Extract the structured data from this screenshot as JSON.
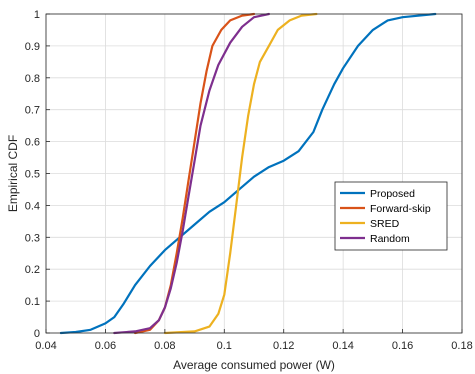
{
  "chart_data": {
    "type": "line",
    "title": "",
    "xlabel": "Average consumed power (W)",
    "ylabel": "Empirical CDF",
    "xlim": [
      0.04,
      0.18
    ],
    "ylim": [
      0,
      1
    ],
    "x_ticks": [
      0.04,
      0.06,
      0.08,
      0.1,
      0.12,
      0.14,
      0.16,
      0.18
    ],
    "x_tick_labels": [
      "0.04",
      "0.06",
      "0.08",
      "0.1",
      "0.12",
      "0.14",
      "0.16",
      "0.18"
    ],
    "y_ticks": [
      0,
      0.1,
      0.2,
      0.3,
      0.4,
      0.5,
      0.6,
      0.7,
      0.8,
      0.9,
      1
    ],
    "y_tick_labels": [
      "0",
      "0.1",
      "0.2",
      "0.3",
      "0.4",
      "0.5",
      "0.6",
      "0.7",
      "0.8",
      "0.9",
      "1"
    ],
    "grid": true,
    "legend_position": "center-right",
    "series": [
      {
        "name": "Proposed",
        "color": "#0072BD",
        "points": [
          [
            0.045,
            0
          ],
          [
            0.05,
            0.003
          ],
          [
            0.055,
            0.01
          ],
          [
            0.06,
            0.03
          ],
          [
            0.063,
            0.05
          ],
          [
            0.066,
            0.09
          ],
          [
            0.07,
            0.15
          ],
          [
            0.075,
            0.21
          ],
          [
            0.08,
            0.26
          ],
          [
            0.085,
            0.3
          ],
          [
            0.09,
            0.34
          ],
          [
            0.095,
            0.38
          ],
          [
            0.1,
            0.41
          ],
          [
            0.105,
            0.45
          ],
          [
            0.11,
            0.49
          ],
          [
            0.115,
            0.52
          ],
          [
            0.12,
            0.54
          ],
          [
            0.125,
            0.57
          ],
          [
            0.13,
            0.63
          ],
          [
            0.133,
            0.7
          ],
          [
            0.137,
            0.78
          ],
          [
            0.14,
            0.83
          ],
          [
            0.145,
            0.9
          ],
          [
            0.15,
            0.95
          ],
          [
            0.155,
            0.98
          ],
          [
            0.16,
            0.99
          ],
          [
            0.171,
            1
          ]
        ]
      },
      {
        "name": "Forward-skip",
        "color": "#D95319",
        "points": [
          [
            0.07,
            0
          ],
          [
            0.075,
            0.01
          ],
          [
            0.078,
            0.04
          ],
          [
            0.08,
            0.08
          ],
          [
            0.082,
            0.15
          ],
          [
            0.084,
            0.25
          ],
          [
            0.086,
            0.36
          ],
          [
            0.088,
            0.48
          ],
          [
            0.09,
            0.6
          ],
          [
            0.092,
            0.72
          ],
          [
            0.094,
            0.82
          ],
          [
            0.096,
            0.9
          ],
          [
            0.099,
            0.95
          ],
          [
            0.102,
            0.98
          ],
          [
            0.106,
            0.995
          ],
          [
            0.11,
            1
          ]
        ]
      },
      {
        "name": "SRED",
        "color": "#EDB120",
        "points": [
          [
            0.08,
            0
          ],
          [
            0.09,
            0.005
          ],
          [
            0.095,
            0.02
          ],
          [
            0.098,
            0.06
          ],
          [
            0.1,
            0.12
          ],
          [
            0.102,
            0.25
          ],
          [
            0.104,
            0.4
          ],
          [
            0.106,
            0.55
          ],
          [
            0.108,
            0.68
          ],
          [
            0.11,
            0.78
          ],
          [
            0.112,
            0.85
          ],
          [
            0.115,
            0.9
          ],
          [
            0.118,
            0.95
          ],
          [
            0.122,
            0.98
          ],
          [
            0.126,
            0.995
          ],
          [
            0.131,
            1
          ]
        ]
      },
      {
        "name": "Random",
        "color": "#7E2F8E",
        "points": [
          [
            0.063,
            0
          ],
          [
            0.07,
            0.005
          ],
          [
            0.075,
            0.015
          ],
          [
            0.078,
            0.04
          ],
          [
            0.08,
            0.08
          ],
          [
            0.082,
            0.14
          ],
          [
            0.084,
            0.22
          ],
          [
            0.086,
            0.32
          ],
          [
            0.088,
            0.43
          ],
          [
            0.09,
            0.54
          ],
          [
            0.092,
            0.65
          ],
          [
            0.095,
            0.76
          ],
          [
            0.098,
            0.84
          ],
          [
            0.102,
            0.91
          ],
          [
            0.106,
            0.96
          ],
          [
            0.11,
            0.99
          ],
          [
            0.115,
            1
          ]
        ]
      }
    ]
  }
}
